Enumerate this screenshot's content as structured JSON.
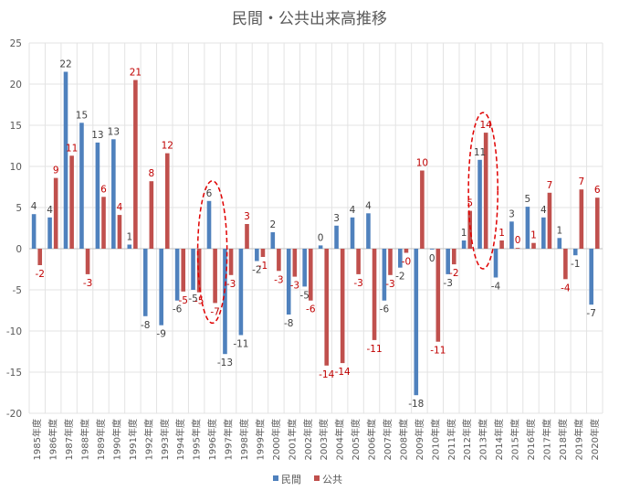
{
  "chart_data": {
    "type": "bar",
    "title": "民間・公共出来高推移",
    "xlabel": "",
    "ylabel": "",
    "ylim": [
      -20,
      25
    ],
    "yticks": [
      -20,
      -15,
      -10,
      -5,
      0,
      5,
      10,
      15,
      20,
      25
    ],
    "grid": true,
    "legend_position": "bottom",
    "categories": [
      "1985年度",
      "1986年度",
      "1987年度",
      "1988年度",
      "1989年度",
      "1990年度",
      "1991年度",
      "1992年度",
      "1993年度",
      "1994年度",
      "1995年度",
      "1996年度",
      "1997年度",
      "1998年度",
      "1999年度",
      "2000年度",
      "2001年度",
      "2002年度",
      "2003年度",
      "2004年度",
      "2005年度",
      "2006年度",
      "2007年度",
      "2008年度",
      "2009年度",
      "2010年度",
      "2011年度",
      "2012年度",
      "2013年度",
      "2014年度",
      "2015年度",
      "2016年度",
      "2017年度",
      "2018年度",
      "2019年度",
      "2020年度"
    ],
    "series": [
      {
        "name": "民間",
        "color": "#4F81BD",
        "label_color": "#404040",
        "values": [
          4.2,
          3.8,
          21.5,
          15.3,
          12.9,
          13.3,
          0.5,
          -8.2,
          -9.3,
          -6.3,
          -5.0,
          5.8,
          -12.8,
          -10.5,
          -1.5,
          2.0,
          -8.0,
          -4.6,
          0.4,
          2.8,
          3.8,
          4.3,
          -6.3,
          -2.3,
          -17.8,
          -0.1,
          -3.1,
          1.0,
          10.8,
          -3.5,
          3.3,
          5.1,
          3.8,
          1.3,
          -0.8,
          -6.8
        ],
        "labels": [
          "4",
          "4",
          "22",
          "15",
          "13",
          "13",
          "1",
          "-8",
          "-9",
          "-6",
          "-5",
          "6",
          "-13",
          "-11",
          "-2",
          "2",
          "-8",
          "-5",
          "0",
          "3",
          "4",
          "4",
          "-6",
          "-2",
          "-18",
          "0",
          "-3",
          "1",
          "11",
          "-4",
          "3",
          "5",
          "4",
          "1",
          "-1",
          "-7"
        ]
      },
      {
        "name": "公共",
        "color": "#C0504D",
        "label_color": "#C00000",
        "values": [
          -2.0,
          8.6,
          11.3,
          -3.1,
          6.3,
          4.1,
          20.5,
          8.2,
          11.6,
          -5.2,
          -5.3,
          -6.6,
          -3.2,
          3.0,
          -1.0,
          -2.7,
          -3.4,
          -6.3,
          -14.2,
          -13.9,
          -3.1,
          -11.1,
          -3.2,
          -0.5,
          9.5,
          -11.3,
          -1.9,
          4.6,
          14.1,
          1.0,
          0.1,
          0.7,
          6.8,
          -3.7,
          7.2,
          6.2
        ],
        "labels": [
          "-2",
          "9",
          "11",
          "-3",
          "6",
          "4",
          "21",
          "8",
          "12",
          "-5",
          "-5",
          "-7",
          "-3",
          "3",
          "-1",
          "-3",
          "-3",
          "-6",
          "-14",
          "-14",
          "-3",
          "-11",
          "-3",
          "-0",
          "10",
          "-11",
          "-2",
          "5",
          "14",
          "1",
          "0",
          "1",
          "7",
          "-4",
          "7",
          "6"
        ]
      }
    ],
    "annotations": [
      {
        "shape": "dashed-ellipse",
        "color": "#E00000",
        "around": [
          "1996年度"
        ]
      },
      {
        "shape": "dashed-ellipse",
        "color": "#E00000",
        "around": [
          "2013年度"
        ]
      }
    ]
  }
}
